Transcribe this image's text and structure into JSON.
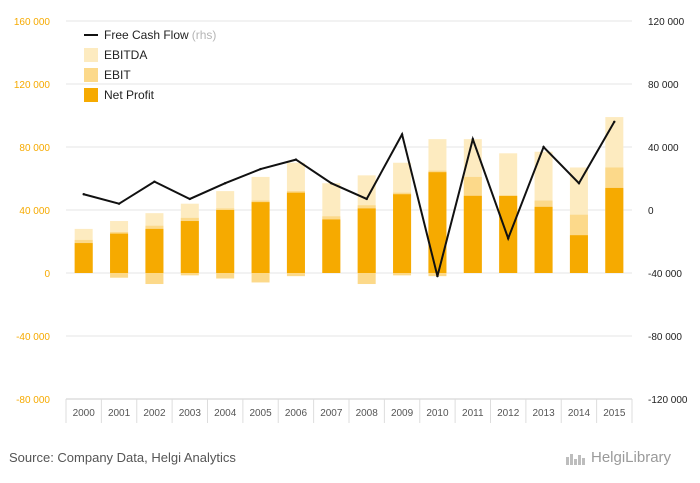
{
  "source_text": "Source: Company Data, Helgi Analytics",
  "brand_name": "HelgiLibrary",
  "colors": {
    "ebitda": "#fdebc0",
    "ebit": "#fcd98a",
    "net_profit": "#f6aa00",
    "fcf": "#111111",
    "left_axis_labels": "#f6aa00",
    "right_axis_labels": "#222222",
    "grid": "#e6e6e6",
    "x_labels": "#555555"
  },
  "chart_data": {
    "type": "bar",
    "categories": [
      "2000",
      "2001",
      "2002",
      "2003",
      "2004",
      "2005",
      "2006",
      "2007",
      "2008",
      "2009",
      "2010",
      "2011",
      "2012",
      "2013",
      "2014",
      "2015"
    ],
    "bar_layout": "overlaid",
    "series": [
      {
        "name": "EBITDA",
        "type": "bar",
        "axis": "left",
        "values": [
          28000,
          33000,
          38000,
          44000,
          52000,
          61000,
          70000,
          57000,
          62000,
          70000,
          85000,
          85000,
          76000,
          77000,
          67000,
          99000
        ]
      },
      {
        "name": "EBIT",
        "type": "bar",
        "axis": "left",
        "values": [
          21000,
          26000,
          30000,
          35000,
          41000,
          46000,
          52000,
          36000,
          43000,
          51000,
          65000,
          61000,
          49000,
          46000,
          37000,
          67000
        ]
      },
      {
        "name": "Net Profit",
        "type": "bar",
        "axis": "left",
        "values": [
          19000,
          25000,
          28000,
          33000,
          40000,
          45000,
          51000,
          34000,
          41000,
          50000,
          64000,
          49000,
          49000,
          42000,
          24000,
          54000
        ]
      },
      {
        "name": "Free Cash Flow",
        "type": "line",
        "axis": "right",
        "values": [
          10000,
          4000,
          18000,
          7000,
          17000,
          26000,
          32000,
          17000,
          7000,
          48000,
          -42000,
          45000,
          -18000,
          40000,
          17000,
          56000
        ]
      }
    ],
    "negative_bars": {
      "ebitda_ebit": [
        0,
        -3000,
        -7000,
        -1500,
        -3500,
        -6000,
        -2000,
        0,
        -7000,
        -1500,
        -2000,
        0,
        0,
        0,
        0,
        0
      ],
      "net_profit": [
        0,
        0,
        0,
        0,
        0,
        0,
        0,
        0,
        0,
        0,
        0,
        0,
        0,
        0,
        0,
        0
      ]
    },
    "legend": [
      {
        "label": "Free Cash Flow",
        "suffix": "(rhs)",
        "kind": "line"
      },
      {
        "label": "EBITDA",
        "suffix": "",
        "kind": "ebitda"
      },
      {
        "label": "EBIT",
        "suffix": "",
        "kind": "ebit"
      },
      {
        "label": "Net Profit",
        "suffix": "",
        "kind": "net_profit"
      }
    ],
    "legend_position": "top-left",
    "y_left": {
      "min": -80000,
      "max": 160000,
      "ticks": [
        160000,
        120000,
        80000,
        40000,
        0,
        -40000,
        -80000
      ],
      "tick_labels": [
        "160 000",
        "120 000",
        "80 000",
        "40 000",
        "0",
        "-40 000",
        "-80 000"
      ]
    },
    "y_right": {
      "min": -120000,
      "max": 120000,
      "ticks": [
        120000,
        80000,
        40000,
        0,
        -40000,
        -80000,
        -120000
      ],
      "tick_labels": [
        "120 000",
        "80 000",
        "40 000",
        "0",
        "-40 000",
        "-80 000",
        "-120 000"
      ]
    },
    "grid": true
  }
}
